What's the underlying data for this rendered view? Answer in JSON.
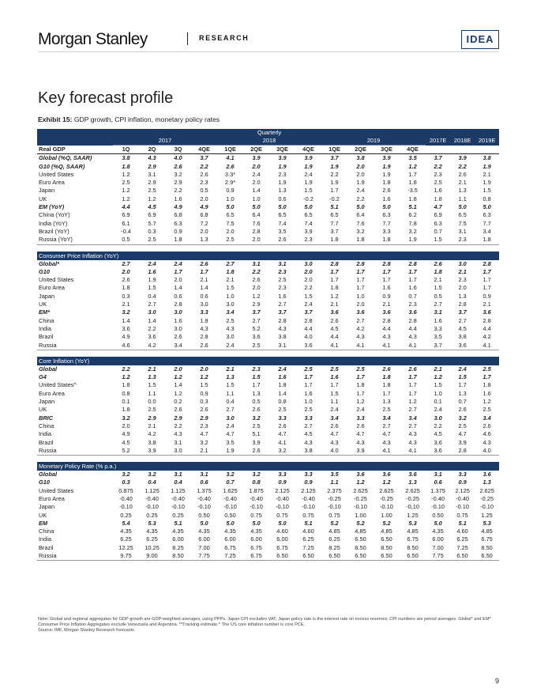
{
  "header": {
    "logo": "Morgan Stanley",
    "section": "RESEARCH",
    "badge": "IDEA"
  },
  "title": "Key forecast profile",
  "exhibit": {
    "label": "Exhibit 15:",
    "caption": "GDP growth, CPI inflation, monetary policy rates"
  },
  "table": {
    "quarterly_label": "Quarterly",
    "years": [
      "2017",
      "2018",
      "2019"
    ],
    "annual_cols": [
      "2017E",
      "2018E",
      "2019E"
    ],
    "row_label_header": "Real GDP",
    "quarters": [
      "1Q",
      "2Q",
      "3Q",
      "4QE",
      "1QE",
      "2QE",
      "3QE",
      "4QE",
      "1QE",
      "2QE",
      "3QE",
      "4QE"
    ],
    "gdp_rows": [
      {
        "label": "Global (%Q, SAAR)",
        "style": "ital",
        "values": [
          "3.8",
          "4.3",
          "4.0",
          "3.7",
          "4.1",
          "3.9",
          "3.9",
          "3.9",
          "3.7",
          "3.8",
          "3.9",
          "3.5",
          "3.7",
          "3.9",
          "3.8"
        ]
      },
      {
        "label": "G10 (%Q, SAAR)",
        "style": "ital",
        "values": [
          "1.8",
          "2.9",
          "2.6",
          "2.2",
          "2.6",
          "2.0",
          "1.9",
          "1.9",
          "1.9",
          "2.0",
          "1.9",
          "1.2",
          "2.2",
          "2.2",
          "1.9"
        ]
      },
      {
        "label": "United States",
        "style": "",
        "values": [
          "1.2",
          "3.1",
          "3.2",
          "2.6",
          "3.3*",
          "2.4",
          "2.3",
          "2.4",
          "2.2",
          "2.0",
          "1.9",
          "1.7",
          "2.3",
          "2.6",
          "2.1"
        ]
      },
      {
        "label": "Euro Area",
        "style": "",
        "values": [
          "2.5",
          "2.9",
          "2.9",
          "2.3",
          "2.9*",
          "2.0",
          "1.9",
          "1.9",
          "1.9",
          "1.9",
          "1.8",
          "1.8",
          "2.5",
          "2.1",
          "1.9"
        ]
      },
      {
        "label": "Japan",
        "style": "",
        "values": [
          "1.2",
          "2.5",
          "2.2",
          "0.5",
          "0.9",
          "1.4",
          "1.3",
          "1.5",
          "1.7",
          "2.4",
          "2.6",
          "-3.5",
          "1.6",
          "1.3",
          "1.5"
        ]
      },
      {
        "label": "UK",
        "style": "",
        "values": [
          "1.2",
          "1.2",
          "1.6",
          "2.0",
          "1.0",
          "1.0",
          "0.6",
          "-0.2",
          "-0.2",
          "2.2",
          "1.6",
          "1.8",
          "1.8",
          "1.1",
          "0.8"
        ]
      },
      {
        "label": "EM (YoY)",
        "style": "ital",
        "values": [
          "4.4",
          "4.5",
          "4.9",
          "4.9",
          "5.0",
          "5.0",
          "5.0",
          "5.0",
          "5.1",
          "5.0",
          "5.0",
          "5.1",
          "4.7",
          "5.0",
          "5.0"
        ]
      },
      {
        "label": "China (YoY)",
        "style": "",
        "values": [
          "6.9",
          "6.9",
          "6.8",
          "6.8",
          "6.5",
          "6.4",
          "6.5",
          "6.5",
          "6.5",
          "6.4",
          "6.3",
          "6.2",
          "6.9",
          "6.5",
          "6.3"
        ]
      },
      {
        "label": "India (YoY)",
        "style": "",
        "values": [
          "6.1",
          "5.7",
          "6.3",
          "7.2",
          "7.5",
          "7.6",
          "7.4",
          "7.4",
          "7.7",
          "7.6",
          "7.7",
          "7.8",
          "6.3",
          "7.5",
          "7.7"
        ]
      },
      {
        "label": "Brazil (YoY)",
        "style": "",
        "values": [
          "-0.4",
          "0.3",
          "0.9",
          "2.0",
          "2.0",
          "2.8",
          "3.5",
          "3.9",
          "3.7",
          "3.2",
          "3.3",
          "3.2",
          "0.7",
          "3.1",
          "3.4"
        ]
      },
      {
        "label": "Russia (YoY)",
        "style": "",
        "values": [
          "0.5",
          "2.5",
          "1.8",
          "1.3",
          "2.5",
          "2.0",
          "2.6",
          "2.3",
          "1.8",
          "1.8",
          "1.8",
          "1.9",
          "1.5",
          "2.3",
          "1.8"
        ]
      }
    ],
    "cpi_title": "Consumer Price Inflation (YoY)",
    "cpi_rows": [
      {
        "label": "Global*",
        "style": "ital",
        "values": [
          "2.7",
          "2.4",
          "2.4",
          "2.6",
          "2.7",
          "3.1",
          "3.1",
          "3.0",
          "2.8",
          "2.8",
          "2.8",
          "2.8",
          "2.6",
          "3.0",
          "2.8"
        ]
      },
      {
        "label": "G10",
        "style": "ital",
        "values": [
          "2.0",
          "1.6",
          "1.7",
          "1.7",
          "1.8",
          "2.2",
          "2.3",
          "2.0",
          "1.7",
          "1.7",
          "1.7",
          "1.7",
          "1.8",
          "2.1",
          "1.7"
        ]
      },
      {
        "label": "United States",
        "style": "",
        "values": [
          "2.6",
          "1.9",
          "2.0",
          "2.1",
          "2.1",
          "2.6",
          "2.5",
          "2.0",
          "1.7",
          "1.7",
          "1.7",
          "1.7",
          "2.1",
          "2.3",
          "1.7"
        ]
      },
      {
        "label": "Euro Area",
        "style": "",
        "values": [
          "1.8",
          "1.5",
          "1.4",
          "1.4",
          "1.5",
          "2.0",
          "2.3",
          "2.2",
          "1.8",
          "1.7",
          "1.6",
          "1.6",
          "1.5",
          "2.0",
          "1.7"
        ]
      },
      {
        "label": "Japan",
        "style": "",
        "values": [
          "0.3",
          "0.4",
          "0.6",
          "0.6",
          "1.0",
          "1.2",
          "1.6",
          "1.5",
          "1.2",
          "1.0",
          "0.9",
          "0.7",
          "0.5",
          "1.3",
          "0.9"
        ]
      },
      {
        "label": "UK",
        "style": "",
        "values": [
          "2.1",
          "2.7",
          "2.8",
          "3.0",
          "3.0",
          "2.9",
          "2.7",
          "2.4",
          "2.1",
          "2.0",
          "2.1",
          "2.3",
          "2.7",
          "2.8",
          "2.1"
        ]
      },
      {
        "label": "EM*",
        "style": "ital",
        "values": [
          "3.2",
          "3.0",
          "3.0",
          "3.3",
          "3.4",
          "3.7",
          "3.7",
          "3.7",
          "3.6",
          "3.6",
          "3.6",
          "3.6",
          "3.1",
          "3.7",
          "3.6"
        ]
      },
      {
        "label": "China",
        "style": "",
        "values": [
          "1.4",
          "1.4",
          "1.6",
          "1.8",
          "2.5",
          "2.7",
          "2.8",
          "2.8",
          "2.6",
          "2.7",
          "2.8",
          "2.8",
          "1.6",
          "2.7",
          "2.8"
        ]
      },
      {
        "label": "India",
        "style": "",
        "values": [
          "3.6",
          "2.2",
          "3.0",
          "4.3",
          "4.3",
          "5.2",
          "4.3",
          "4.4",
          "4.5",
          "4.2",
          "4.4",
          "4.4",
          "3.3",
          "4.5",
          "4.4"
        ]
      },
      {
        "label": "Brazil",
        "style": "",
        "values": [
          "4.9",
          "3.6",
          "2.6",
          "2.8",
          "3.0",
          "3.6",
          "3.8",
          "4.0",
          "4.4",
          "4.3",
          "4.3",
          "4.3",
          "3.5",
          "3.8",
          "4.2"
        ]
      },
      {
        "label": "Russia",
        "style": "",
        "values": [
          "4.6",
          "4.2",
          "3.4",
          "2.6",
          "2.4",
          "2.5",
          "3.1",
          "3.6",
          "4.1",
          "4.1",
          "4.1",
          "4.1",
          "3.7",
          "3.6",
          "4.1"
        ]
      }
    ],
    "core_title": "Core Inflation (YoY)",
    "core_rows": [
      {
        "label": "Global",
        "style": "ital",
        "values": [
          "2.2",
          "2.1",
          "2.0",
          "2.0",
          "2.1",
          "2.3",
          "2.4",
          "2.5",
          "2.5",
          "2.5",
          "2.6",
          "2.6",
          "2.1",
          "2.4",
          "2.5"
        ]
      },
      {
        "label": "G4",
        "style": "ital",
        "values": [
          "1.2",
          "1.3",
          "1.2",
          "1.2",
          "1.3",
          "1.5",
          "1.6",
          "1.7",
          "1.6",
          "1.7",
          "1.8",
          "1.7",
          "1.2",
          "1.5",
          "1.7"
        ]
      },
      {
        "label": "United States^",
        "style": "",
        "values": [
          "1.8",
          "1.5",
          "1.4",
          "1.5",
          "1.5",
          "1.7",
          "1.8",
          "1.7",
          "1.7",
          "1.8",
          "1.8",
          "1.7",
          "1.5",
          "1.7",
          "1.8"
        ]
      },
      {
        "label": "Euro Area",
        "style": "",
        "values": [
          "0.8",
          "1.1",
          "1.2",
          "0.9",
          "1.1",
          "1.3",
          "1.4",
          "1.6",
          "1.5",
          "1.7",
          "1.7",
          "1.7",
          "1.0",
          "1.3",
          "1.6"
        ]
      },
      {
        "label": "Japan",
        "style": "",
        "values": [
          "0.1",
          "0.0",
          "0.2",
          "0.3",
          "0.4",
          "0.5",
          "0.8",
          "1.0",
          "1.1",
          "1.2",
          "1.3",
          "1.2",
          "0.1",
          "0.7",
          "1.2"
        ]
      },
      {
        "label": "UK",
        "style": "",
        "values": [
          "1.8",
          "2.5",
          "2.6",
          "2.6",
          "2.7",
          "2.6",
          "2.5",
          "2.5",
          "2.4",
          "2.4",
          "2.5",
          "2.7",
          "2.4",
          "2.6",
          "2.5"
        ]
      },
      {
        "label": "BRIC",
        "style": "ital",
        "values": [
          "3.2",
          "2.9",
          "2.9",
          "2.9",
          "3.0",
          "3.2",
          "3.3",
          "3.3",
          "3.4",
          "3.3",
          "3.4",
          "3.4",
          "3.0",
          "3.2",
          "3.4"
        ]
      },
      {
        "label": "China",
        "style": "",
        "values": [
          "2.0",
          "2.1",
          "2.2",
          "2.3",
          "2.4",
          "2.5",
          "2.6",
          "2.7",
          "2.6",
          "2.6",
          "2.7",
          "2.7",
          "2.2",
          "2.5",
          "2.6"
        ]
      },
      {
        "label": "India",
        "style": "",
        "values": [
          "4.9",
          "4.2",
          "4.3",
          "4.7",
          "4.7",
          "5.1",
          "4.7",
          "4.5",
          "4.7",
          "4.7",
          "4.7",
          "4.3",
          "4.5",
          "4.7",
          "4.6"
        ]
      },
      {
        "label": "Brazil",
        "style": "",
        "values": [
          "4.5",
          "3.8",
          "3.1",
          "3.2",
          "3.5",
          "3.9",
          "4.1",
          "4.3",
          "4.3",
          "4.3",
          "4.3",
          "4.3",
          "3.6",
          "3.9",
          "4.3"
        ]
      },
      {
        "label": "Russia",
        "style": "",
        "values": [
          "5.2",
          "3.9",
          "3.0",
          "2.1",
          "1.9",
          "2.6",
          "3.2",
          "3.8",
          "4.0",
          "3.9",
          "4.1",
          "4.1",
          "3.6",
          "2.8",
          "4.0"
        ]
      }
    ],
    "mp_title": "Monetary Policy Rate (% p.a.)",
    "mp_rows": [
      {
        "label": "Global",
        "style": "ital",
        "values": [
          "3.2",
          "3.2",
          "3.1",
          "3.1",
          "3.2",
          "3.2",
          "3.3",
          "3.3",
          "3.5",
          "3.6",
          "3.6",
          "3.6",
          "3.1",
          "3.3",
          "3.6"
        ]
      },
      {
        "label": "G10",
        "style": "ital",
        "values": [
          "0.3",
          "0.4",
          "0.4",
          "0.6",
          "0.7",
          "0.8",
          "0.9",
          "0.9",
          "1.1",
          "1.2",
          "1.2",
          "1.3",
          "0.6",
          "0.9",
          "1.3"
        ]
      },
      {
        "label": "United States",
        "style": "",
        "values": [
          "0.875",
          "1.125",
          "1.125",
          "1.375",
          "1.625",
          "1.875",
          "2.125",
          "2.125",
          "2.375",
          "2.625",
          "2.625",
          "2.625",
          "1.375",
          "2.125",
          "2.625"
        ]
      },
      {
        "label": "Euro Area",
        "style": "",
        "values": [
          "-0.40",
          "-0.40",
          "-0.40",
          "-0.40",
          "-0.40",
          "-0.40",
          "-0.40",
          "-0.40",
          "-0.25",
          "-0.25",
          "-0.25",
          "-0.25",
          "-0.40",
          "-0.40",
          "-0.25"
        ]
      },
      {
        "label": "Japan",
        "style": "",
        "values": [
          "-0.10",
          "-0.10",
          "-0.10",
          "-0.10",
          "-0.10",
          "-0.10",
          "-0.10",
          "-0.10",
          "-0.10",
          "-0.10",
          "-0.10",
          "-0.10",
          "-0.10",
          "-0.10",
          "-0.10"
        ]
      },
      {
        "label": "UK",
        "style": "",
        "values": [
          "0.25",
          "0.25",
          "0.25",
          "0.50",
          "0.50",
          "0.75",
          "0.75",
          "0.75",
          "0.75",
          "1.00",
          "1.00",
          "1.25",
          "0.50",
          "0.75",
          "1.25"
        ]
      },
      {
        "label": "EM",
        "style": "ital",
        "values": [
          "5.4",
          "5.3",
          "5.1",
          "5.0",
          "5.0",
          "5.0",
          "5.0",
          "5.1",
          "5.2",
          "5.2",
          "5.2",
          "5.3",
          "5.0",
          "5.1",
          "5.3"
        ]
      },
      {
        "label": "China",
        "style": "",
        "values": [
          "4.35",
          "4.35",
          "4.35",
          "4.35",
          "4.35",
          "4.35",
          "4.60",
          "4.60",
          "4.85",
          "4.85",
          "4.85",
          "4.85",
          "4.35",
          "4.60",
          "4.85"
        ]
      },
      {
        "label": "India",
        "style": "",
        "values": [
          "6.25",
          "6.25",
          "6.00",
          "6.00",
          "6.00",
          "6.00",
          "6.00",
          "6.25",
          "6.25",
          "6.50",
          "6.50",
          "6.75",
          "6.00",
          "6.25",
          "6.75"
        ]
      },
      {
        "label": "Brazil",
        "style": "",
        "values": [
          "12.25",
          "10.25",
          "8.25",
          "7.00",
          "6.75",
          "6.75",
          "6.75",
          "7.25",
          "8.25",
          "8.50",
          "8.50",
          "8.50",
          "7.00",
          "7.25",
          "8.50"
        ]
      },
      {
        "label": "Russia",
        "style": "",
        "values": [
          "9.75",
          "9.00",
          "8.50",
          "7.75",
          "7.25",
          "6.75",
          "6.50",
          "6.50",
          "6.50",
          "6.50",
          "6.50",
          "6.50",
          "7.75",
          "6.50",
          "6.50"
        ]
      }
    ]
  },
  "notes": {
    "line1": "Note: Global and regional aggregates for GDP growth are GDP-weighted averages, using PPPs. Japan CPI excludes VAT; Japan policy rate is the interest rate on excess reserves; CPI numbers are period averages. Global* and EM* Consumer Price Inflation Aggregates exclude Venezuela and Argentina. **Tracking estimate.^ The US core inflation number is core PCE.",
    "line2": "Source: IMF, Morgan Stanley Research forecasts"
  },
  "page_number": "9",
  "colors": {
    "navy": "#1b3a66"
  }
}
